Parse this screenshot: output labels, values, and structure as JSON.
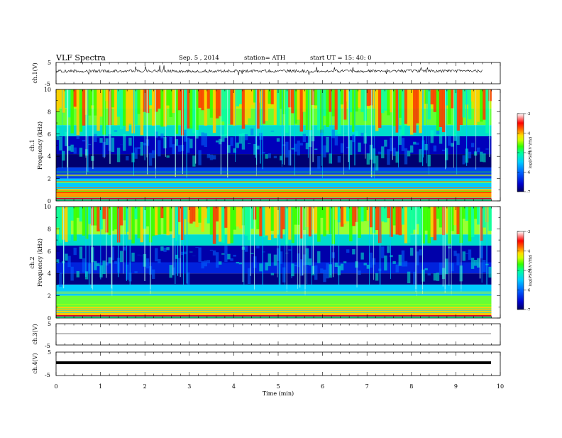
{
  "header": {
    "title": "VLF  Spectra",
    "date": "Sep. 5  , 2014",
    "station": "station= ATH",
    "start": "start  UT  =   15: 40: 0"
  },
  "chart_data": {
    "type": "heatmap",
    "x": {
      "label": "Time  (min)",
      "ticks": [
        "0",
        "1",
        "2",
        "3",
        "4",
        "5",
        "6",
        "7",
        "8",
        "9",
        "10"
      ],
      "range": [
        0,
        10
      ],
      "data_end": 9.8
    },
    "panels": [
      {
        "name": "ch.1(V)",
        "type": "line",
        "ylim": [
          -5,
          5
        ],
        "ticks": [
          "5",
          "-5"
        ]
      },
      {
        "name": "ch.1",
        "ylabel": "Frequency (kHz)",
        "type": "heatmap",
        "ylim": [
          0,
          10
        ],
        "ticks": [
          "10",
          "8",
          "6",
          "4",
          "2",
          "0"
        ]
      },
      {
        "name": "ch.2",
        "ylabel": "Frequency (kHz)",
        "type": "heatmap",
        "ylim": [
          0,
          10
        ],
        "ticks": [
          "10",
          "8",
          "6",
          "4",
          "2",
          "0"
        ]
      },
      {
        "name": "ch.3(V)",
        "type": "line",
        "ylim": [
          -5,
          5
        ],
        "ticks": [
          "5",
          "-5"
        ]
      },
      {
        "name": "ch.4(V)",
        "type": "line",
        "ylim": [
          -5,
          5
        ],
        "ticks": [
          "5",
          "-5"
        ]
      }
    ],
    "colorbar": {
      "label": "log(PSD)(V²/Hz)",
      "ticks": [
        "-3",
        "-4",
        "-5",
        "-6",
        "-7"
      ],
      "range": [
        -7,
        -3
      ],
      "colors": [
        "#000060",
        "#0000cc",
        "#0066ff",
        "#00ccff",
        "#00ff99",
        "#33ff00",
        "#ccff00",
        "#ffdd00",
        "#ff6600",
        "#ff0000",
        "#ff9999",
        "#ffffff"
      ]
    }
  }
}
